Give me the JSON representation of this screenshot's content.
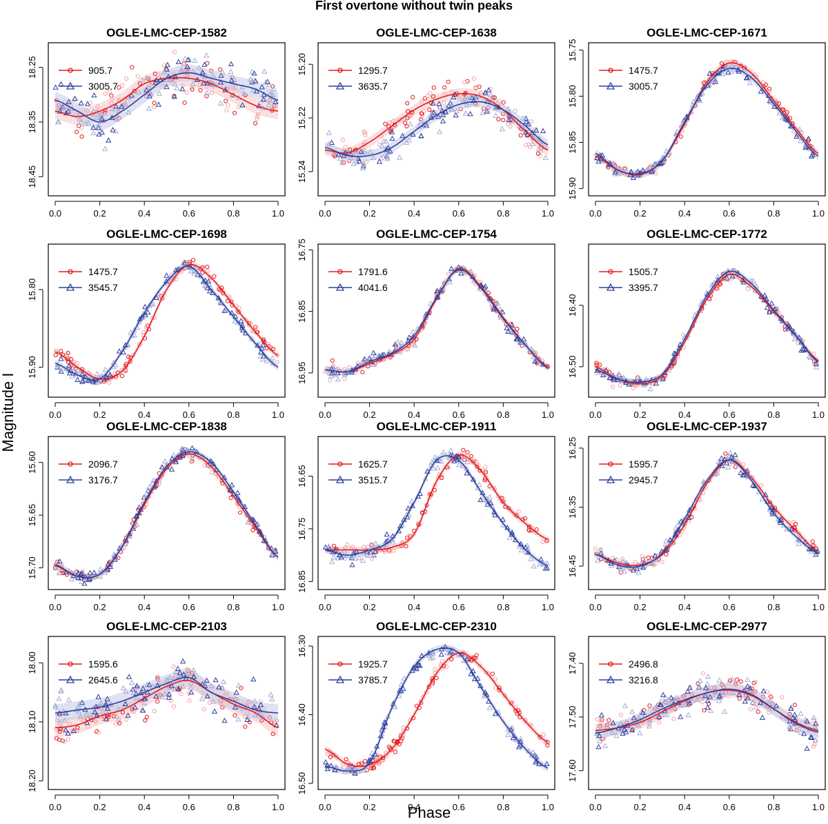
{
  "figure": {
    "title": "First overtone without twin peaks",
    "xlabel": "Phase",
    "ylabel": "Magnitude I",
    "colors": {
      "red": "#e41a1c",
      "blue": "#2b3f9e",
      "red_light": "#f4a3a5",
      "blue_light": "#a3acd6",
      "band_red": "#f6c7c8",
      "band_blue": "#c4cae8"
    }
  },
  "chart_data": [
    {
      "type": "scatter",
      "title": "OGLE-LMC-CEP-1582",
      "xlim": [
        0,
        1
      ],
      "ylim": [
        18.48,
        18.21
      ],
      "xticks": [
        0.0,
        0.2,
        0.4,
        0.6,
        0.8,
        1.0
      ],
      "yticks": [
        18.25,
        18.35,
        18.45
      ],
      "series": [
        {
          "name": "905.7",
          "color": "red",
          "phase": [
            0,
            0.1,
            0.2,
            0.3,
            0.4,
            0.5,
            0.6,
            0.7,
            0.8,
            0.9,
            1.0
          ],
          "mag": [
            18.33,
            18.34,
            18.33,
            18.31,
            18.28,
            18.27,
            18.27,
            18.28,
            18.3,
            18.32,
            18.33
          ],
          "scatter": 0.035,
          "band": 0.015
        },
        {
          "name": "3005.7",
          "color": "blue",
          "phase": [
            0,
            0.1,
            0.2,
            0.3,
            0.4,
            0.5,
            0.6,
            0.7,
            0.8,
            0.9,
            1.0
          ],
          "mag": [
            18.31,
            18.33,
            18.35,
            18.33,
            18.3,
            18.27,
            18.26,
            18.27,
            18.28,
            18.29,
            18.31
          ],
          "scatter": 0.035,
          "band": 0.015
        }
      ]
    },
    {
      "type": "scatter",
      "title": "OGLE-LMC-CEP-1638",
      "xlim": [
        0,
        1
      ],
      "ylim": [
        15.248,
        15.193
      ],
      "xticks": [
        0.0,
        0.2,
        0.4,
        0.6,
        0.8,
        1.0
      ],
      "yticks": [
        15.2,
        15.22,
        15.24
      ],
      "series": [
        {
          "name": "1295.7",
          "color": "red",
          "phase": [
            0,
            0.1,
            0.2,
            0.3,
            0.4,
            0.5,
            0.6,
            0.7,
            0.8,
            0.9,
            1.0
          ],
          "mag": [
            15.232,
            15.233,
            15.229,
            15.223,
            15.217,
            15.213,
            15.211,
            15.212,
            15.217,
            15.225,
            15.232
          ],
          "scatter": 0.005,
          "band": 0.002
        },
        {
          "name": "3635.7",
          "color": "blue",
          "phase": [
            0,
            0.1,
            0.2,
            0.3,
            0.4,
            0.5,
            0.6,
            0.7,
            0.8,
            0.9,
            1.0
          ],
          "mag": [
            15.231,
            15.234,
            15.234,
            15.231,
            15.225,
            15.219,
            15.215,
            15.214,
            15.217,
            15.223,
            15.23
          ],
          "scatter": 0.005,
          "band": 0.002
        }
      ]
    },
    {
      "type": "scatter",
      "title": "OGLE-LMC-CEP-1671",
      "xlim": [
        0,
        1
      ],
      "ylim": [
        15.905,
        15.745
      ],
      "xticks": [
        0.0,
        0.2,
        0.4,
        0.6,
        0.8,
        1.0
      ],
      "yticks": [
        15.75,
        15.8,
        15.85,
        15.9
      ],
      "series": [
        {
          "name": "1475.7",
          "color": "red",
          "phase": [
            0,
            0.1,
            0.2,
            0.3,
            0.4,
            0.5,
            0.6,
            0.7,
            0.8,
            0.9,
            1.0
          ],
          "mag": [
            15.865,
            15.88,
            15.885,
            15.87,
            15.83,
            15.785,
            15.764,
            15.775,
            15.805,
            15.835,
            15.862
          ],
          "scatter": 0.006,
          "band": 0.004
        },
        {
          "name": "3005.7",
          "color": "blue",
          "phase": [
            0,
            0.1,
            0.2,
            0.3,
            0.4,
            0.5,
            0.6,
            0.7,
            0.8,
            0.9,
            1.0
          ],
          "mag": [
            15.862,
            15.88,
            15.884,
            15.87,
            15.828,
            15.788,
            15.77,
            15.78,
            15.808,
            15.838,
            15.865
          ],
          "scatter": 0.006,
          "band": 0.004
        }
      ]
    },
    {
      "type": "scatter",
      "title": "OGLE-LMC-CEP-1698",
      "xlim": [
        0,
        1
      ],
      "ylim": [
        15.935,
        15.745
      ],
      "xticks": [
        0.0,
        0.2,
        0.4,
        0.6,
        0.8,
        1.0
      ],
      "yticks": [
        15.8,
        15.9
      ],
      "series": [
        {
          "name": "1475.7",
          "color": "red",
          "phase": [
            0,
            0.1,
            0.2,
            0.3,
            0.4,
            0.5,
            0.6,
            0.7,
            0.8,
            0.9,
            1.0
          ],
          "mag": [
            15.88,
            15.9,
            15.915,
            15.905,
            15.86,
            15.8,
            15.768,
            15.785,
            15.82,
            15.855,
            15.885
          ],
          "scatter": 0.007,
          "band": 0.004
        },
        {
          "name": "3545.7",
          "color": "blue",
          "phase": [
            0,
            0.1,
            0.2,
            0.3,
            0.4,
            0.5,
            0.6,
            0.7,
            0.8,
            0.9,
            1.0
          ],
          "mag": [
            15.895,
            15.91,
            15.915,
            15.88,
            15.83,
            15.79,
            15.77,
            15.8,
            15.835,
            15.87,
            15.9
          ],
          "scatter": 0.007,
          "band": 0.004
        }
      ]
    },
    {
      "type": "scatter",
      "title": "OGLE-LMC-CEP-1754",
      "xlim": [
        0,
        1
      ],
      "ylim": [
        16.985,
        16.745
      ],
      "xticks": [
        0.0,
        0.2,
        0.4,
        0.6,
        0.8,
        1.0
      ],
      "yticks": [
        16.75,
        16.85,
        16.95
      ],
      "series": [
        {
          "name": "1791.6",
          "color": "red",
          "phase": [
            0,
            0.1,
            0.2,
            0.3,
            0.4,
            0.5,
            0.6,
            0.7,
            0.8,
            0.9,
            1.0
          ],
          "mag": [
            16.945,
            16.948,
            16.935,
            16.92,
            16.895,
            16.83,
            16.78,
            16.81,
            16.86,
            16.905,
            16.94
          ],
          "scatter": 0.009,
          "band": 0.005
        },
        {
          "name": "4041.6",
          "color": "blue",
          "phase": [
            0,
            0.1,
            0.2,
            0.3,
            0.4,
            0.5,
            0.6,
            0.7,
            0.8,
            0.9,
            1.0
          ],
          "mag": [
            16.945,
            16.948,
            16.932,
            16.918,
            16.89,
            16.828,
            16.782,
            16.812,
            16.862,
            16.905,
            16.942
          ],
          "scatter": 0.009,
          "band": 0.005
        }
      ]
    },
    {
      "type": "scatter",
      "title": "OGLE-LMC-CEP-1772",
      "xlim": [
        0,
        1
      ],
      "ylim": [
        16.545,
        16.305
      ],
      "xticks": [
        0.0,
        0.2,
        0.4,
        0.6,
        0.8,
        1.0
      ],
      "yticks": [
        16.4,
        16.5
      ],
      "series": [
        {
          "name": "1505.7",
          "color": "red",
          "phase": [
            0,
            0.1,
            0.2,
            0.3,
            0.4,
            0.5,
            0.6,
            0.7,
            0.8,
            0.9,
            1.0
          ],
          "mag": [
            16.5,
            16.52,
            16.528,
            16.515,
            16.46,
            16.39,
            16.35,
            16.37,
            16.41,
            16.45,
            16.49
          ],
          "scatter": 0.009,
          "band": 0.005
        },
        {
          "name": "3395.7",
          "color": "blue",
          "phase": [
            0,
            0.1,
            0.2,
            0.3,
            0.4,
            0.5,
            0.6,
            0.7,
            0.8,
            0.9,
            1.0
          ],
          "mag": [
            16.505,
            16.52,
            16.525,
            16.512,
            16.455,
            16.385,
            16.345,
            16.365,
            16.408,
            16.45,
            16.492
          ],
          "scatter": 0.009,
          "band": 0.005
        }
      ]
    },
    {
      "type": "scatter",
      "title": "OGLE-LMC-CEP-1838",
      "xlim": [
        0,
        1
      ],
      "ylim": [
        15.718,
        15.578
      ],
      "xticks": [
        0.0,
        0.2,
        0.4,
        0.6,
        0.8,
        1.0
      ],
      "yticks": [
        15.6,
        15.65,
        15.7
      ],
      "series": [
        {
          "name": "2096.7",
          "color": "red",
          "phase": [
            0,
            0.1,
            0.2,
            0.3,
            0.4,
            0.5,
            0.6,
            0.7,
            0.8,
            0.9,
            1.0
          ],
          "mag": [
            15.698,
            15.708,
            15.706,
            15.68,
            15.64,
            15.606,
            15.592,
            15.604,
            15.632,
            15.662,
            15.69
          ],
          "scatter": 0.005,
          "band": 0.003
        },
        {
          "name": "3176.7",
          "color": "blue",
          "phase": [
            0,
            0.1,
            0.2,
            0.3,
            0.4,
            0.5,
            0.6,
            0.7,
            0.8,
            0.9,
            1.0
          ],
          "mag": [
            15.697,
            15.708,
            15.706,
            15.68,
            15.638,
            15.604,
            15.59,
            15.6,
            15.628,
            15.66,
            15.69
          ],
          "scatter": 0.005,
          "band": 0.003
        }
      ]
    },
    {
      "type": "scatter",
      "title": "OGLE-LMC-CEP-1911",
      "xlim": [
        0,
        1
      ],
      "ylim": [
        16.86,
        16.58
      ],
      "xticks": [
        0.0,
        0.2,
        0.4,
        0.6,
        0.8,
        1.0
      ],
      "yticks": [
        16.65,
        16.75,
        16.85
      ],
      "series": [
        {
          "name": "1625.7",
          "color": "red",
          "phase": [
            0,
            0.1,
            0.2,
            0.3,
            0.4,
            0.5,
            0.6,
            0.7,
            0.8,
            0.9,
            1.0
          ],
          "mag": [
            16.79,
            16.79,
            16.79,
            16.785,
            16.76,
            16.66,
            16.61,
            16.64,
            16.7,
            16.74,
            16.77
          ],
          "scatter": 0.012,
          "band": 0.006
        },
        {
          "name": "3515.7",
          "color": "blue",
          "phase": [
            0,
            0.1,
            0.2,
            0.3,
            0.4,
            0.5,
            0.6,
            0.7,
            0.8,
            0.9,
            1.0
          ],
          "mag": [
            16.79,
            16.8,
            16.79,
            16.77,
            16.7,
            16.62,
            16.62,
            16.68,
            16.74,
            16.79,
            16.82
          ],
          "scatter": 0.012,
          "band": 0.006
        }
      ]
    },
    {
      "type": "scatter",
      "title": "OGLE-LMC-CEP-1937",
      "xlim": [
        0,
        1
      ],
      "ylim": [
        16.485,
        16.235
      ],
      "xticks": [
        0.0,
        0.2,
        0.4,
        0.6,
        0.8,
        1.0
      ],
      "yticks": [
        16.25,
        16.35,
        16.45
      ],
      "series": [
        {
          "name": "1595.7",
          "color": "red",
          "phase": [
            0,
            0.1,
            0.2,
            0.3,
            0.4,
            0.5,
            0.6,
            0.7,
            0.8,
            0.9,
            1.0
          ],
          "mag": [
            16.43,
            16.445,
            16.448,
            16.43,
            16.38,
            16.31,
            16.27,
            16.3,
            16.35,
            16.39,
            16.425
          ],
          "scatter": 0.009,
          "band": 0.005
        },
        {
          "name": "2945.7",
          "color": "blue",
          "phase": [
            0,
            0.1,
            0.2,
            0.3,
            0.4,
            0.5,
            0.6,
            0.7,
            0.8,
            0.9,
            1.0
          ],
          "mag": [
            16.43,
            16.448,
            16.45,
            16.428,
            16.37,
            16.305,
            16.27,
            16.305,
            16.36,
            16.4,
            16.428
          ],
          "scatter": 0.009,
          "band": 0.005
        }
      ]
    },
    {
      "type": "scatter",
      "title": "OGLE-LMC-CEP-2103",
      "xlim": [
        0,
        1
      ],
      "ylim": [
        18.21,
        17.96
      ],
      "xticks": [
        0.0,
        0.2,
        0.4,
        0.6,
        0.8,
        1.0
      ],
      "yticks": [
        18.0,
        18.1,
        18.2
      ],
      "series": [
        {
          "name": "1595.6",
          "color": "red",
          "phase": [
            0,
            0.1,
            0.2,
            0.3,
            0.4,
            0.5,
            0.6,
            0.7,
            0.8,
            0.9,
            1.0
          ],
          "mag": [
            18.11,
            18.105,
            18.09,
            18.08,
            18.06,
            18.04,
            18.03,
            18.05,
            18.07,
            18.085,
            18.11
          ],
          "scatter": 0.03,
          "band": 0.015
        },
        {
          "name": "2645.6",
          "color": "blue",
          "phase": [
            0,
            0.1,
            0.2,
            0.3,
            0.4,
            0.5,
            0.6,
            0.7,
            0.8,
            0.9,
            1.0
          ],
          "mag": [
            18.085,
            18.08,
            18.075,
            18.065,
            18.05,
            18.035,
            18.025,
            18.05,
            18.065,
            18.08,
            18.085
          ],
          "scatter": 0.03,
          "band": 0.015
        }
      ]
    },
    {
      "type": "scatter",
      "title": "OGLE-LMC-CEP-2310",
      "xlim": [
        0,
        1
      ],
      "ylim": [
        16.505,
        16.29
      ],
      "xticks": [
        0.0,
        0.2,
        0.4,
        0.6,
        0.8,
        1.0
      ],
      "yticks": [
        16.3,
        16.4,
        16.5
      ],
      "series": [
        {
          "name": "1925.7",
          "color": "red",
          "phase": [
            0,
            0.1,
            0.2,
            0.3,
            0.4,
            0.5,
            0.6,
            0.7,
            0.8,
            0.9,
            1.0
          ],
          "mag": [
            16.45,
            16.472,
            16.473,
            16.45,
            16.4,
            16.34,
            16.31,
            16.33,
            16.37,
            16.41,
            16.44
          ],
          "scatter": 0.008,
          "band": 0.005
        },
        {
          "name": "3785.7",
          "color": "blue",
          "phase": [
            0,
            0.1,
            0.2,
            0.3,
            0.4,
            0.5,
            0.6,
            0.7,
            0.8,
            0.9,
            1.0
          ],
          "mag": [
            16.475,
            16.482,
            16.47,
            16.39,
            16.33,
            16.305,
            16.31,
            16.36,
            16.41,
            16.45,
            16.478
          ],
          "scatter": 0.008,
          "band": 0.005
        }
      ]
    },
    {
      "type": "scatter",
      "title": "OGLE-LMC-CEP-2977",
      "xlim": [
        0,
        1
      ],
      "ylim": [
        17.63,
        17.355
      ],
      "xticks": [
        0.0,
        0.2,
        0.4,
        0.6,
        0.8,
        1.0
      ],
      "yticks": [
        17.4,
        17.5,
        17.6
      ],
      "series": [
        {
          "name": "2496.8",
          "color": "red",
          "phase": [
            0,
            0.1,
            0.2,
            0.3,
            0.4,
            0.5,
            0.6,
            0.7,
            0.8,
            0.9,
            1.0
          ],
          "mag": [
            17.525,
            17.52,
            17.51,
            17.49,
            17.47,
            17.455,
            17.45,
            17.46,
            17.485,
            17.51,
            17.525
          ],
          "scatter": 0.025,
          "band": 0.012
        },
        {
          "name": "3216.8",
          "color": "blue",
          "phase": [
            0,
            0.1,
            0.2,
            0.3,
            0.4,
            0.5,
            0.6,
            0.7,
            0.8,
            0.9,
            1.0
          ],
          "mag": [
            17.53,
            17.52,
            17.505,
            17.485,
            17.468,
            17.455,
            17.448,
            17.458,
            17.485,
            17.512,
            17.528
          ],
          "scatter": 0.025,
          "band": 0.012
        }
      ]
    }
  ]
}
